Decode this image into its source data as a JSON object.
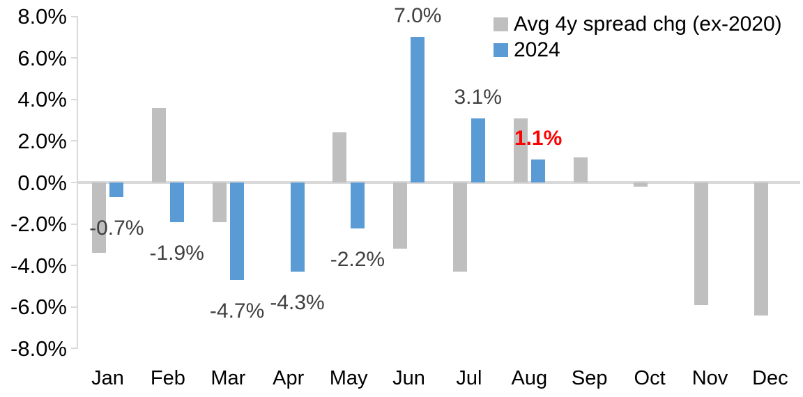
{
  "chart_data": {
    "type": "bar",
    "title": "",
    "categories": [
      "Jan",
      "Feb",
      "Mar",
      "Apr",
      "May",
      "Jun",
      "Jul",
      "Aug",
      "Sep",
      "Oct",
      "Nov",
      "Dec"
    ],
    "series": [
      {
        "name": "Avg 4y spread chg (ex-2020)",
        "color": "#BFBFBF",
        "values": [
          -3.4,
          3.6,
          -1.9,
          0.0,
          2.4,
          -3.2,
          -4.3,
          3.1,
          1.2,
          -0.2,
          -5.9,
          -6.4
        ]
      },
      {
        "name": "2024",
        "color": "#5B9BD5",
        "values": [
          -0.7,
          -1.9,
          -4.7,
          -4.3,
          -2.2,
          7.0,
          3.1,
          1.1,
          null,
          null,
          null,
          null
        ]
      }
    ],
    "data_labels": [
      {
        "category": "Jan",
        "series": "2024",
        "text": "-0.7%",
        "color": "#404040",
        "bold": false
      },
      {
        "category": "Feb",
        "series": "2024",
        "text": "-1.9%",
        "color": "#404040",
        "bold": false
      },
      {
        "category": "Mar",
        "series": "2024",
        "text": "-4.7%",
        "color": "#404040",
        "bold": false
      },
      {
        "category": "Apr",
        "series": "2024",
        "text": "-4.3%",
        "color": "#404040",
        "bold": false
      },
      {
        "category": "May",
        "series": "2024",
        "text": "-2.2%",
        "color": "#404040",
        "bold": false
      },
      {
        "category": "Jun",
        "series": "2024",
        "text": "7.0%",
        "color": "#404040",
        "bold": false
      },
      {
        "category": "Jul",
        "series": "2024",
        "text": "3.1%",
        "color": "#404040",
        "bold": false
      },
      {
        "category": "Aug",
        "series": "2024",
        "text": "1.1%",
        "color": "#FF0000",
        "bold": true
      }
    ],
    "y_axis": {
      "min": -8,
      "max": 8,
      "tick_step": 2,
      "tick_labels": [
        "8.0%",
        "6.0%",
        "4.0%",
        "2.0%",
        "0.0%",
        "-2.0%",
        "-4.0%",
        "-6.0%",
        "-8.0%"
      ]
    },
    "legend": {
      "position": "top-right"
    },
    "grid": false,
    "colors": {
      "axis_line": "#D9D9D9",
      "tick_label": "#000000",
      "label_default": "#404040",
      "label_highlight": "#FF0000"
    }
  }
}
